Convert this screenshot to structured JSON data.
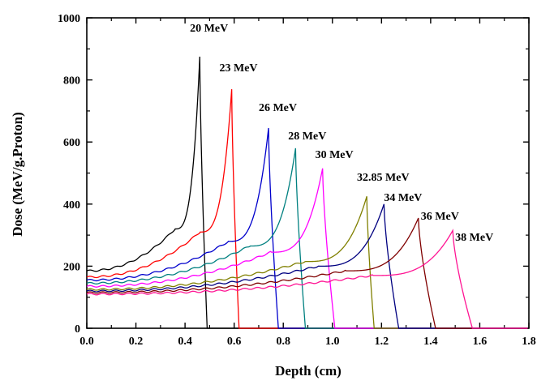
{
  "chart_data": {
    "type": "line",
    "title": "",
    "xlabel": "Depth (cm)",
    "ylabel": "Dose (MeV/g.Proton)",
    "xlim": [
      0,
      1.8
    ],
    "ylim": [
      0,
      1000
    ],
    "xticks": [
      "0.0",
      "0.2",
      "0.4",
      "0.6",
      "0.8",
      "1.0",
      "1.2",
      "1.4",
      "1.6",
      "1.8"
    ],
    "yticks": [
      "0",
      "200",
      "400",
      "600",
      "800",
      "1000"
    ],
    "grid": false,
    "legend": "none",
    "series": [
      {
        "name": "20 MeV",
        "color": "#000000",
        "entrance": 185,
        "plateau_end": 320,
        "peak_x": 0.46,
        "peak_y": 875,
        "end_x": 0.49
      },
      {
        "name": "23 MeV",
        "color": "#ff0000",
        "entrance": 165,
        "plateau_end": 310,
        "peak_x": 0.59,
        "peak_y": 770,
        "end_x": 0.62
      },
      {
        "name": "26 MeV",
        "color": "#0000cc",
        "entrance": 155,
        "plateau_end": 280,
        "peak_x": 0.74,
        "peak_y": 645,
        "end_x": 0.78
      },
      {
        "name": "28 MeV",
        "color": "#008080",
        "entrance": 145,
        "plateau_end": 265,
        "peak_x": 0.85,
        "peak_y": 580,
        "end_x": 0.89
      },
      {
        "name": "30 MeV",
        "color": "#ff00ff",
        "entrance": 135,
        "plateau_end": 245,
        "peak_x": 0.96,
        "peak_y": 515,
        "end_x": 1.01
      },
      {
        "name": "32.85 MeV",
        "color": "#808000",
        "entrance": 125,
        "plateau_end": 215,
        "peak_x": 1.14,
        "peak_y": 425,
        "end_x": 1.17
      },
      {
        "name": "34 MeV",
        "color": "#000080",
        "entrance": 120,
        "plateau_end": 200,
        "peak_x": 1.21,
        "peak_y": 400,
        "end_x": 1.27
      },
      {
        "name": "36 MeV",
        "color": "#800000",
        "entrance": 115,
        "plateau_end": 185,
        "peak_x": 1.35,
        "peak_y": 355,
        "end_x": 1.42
      },
      {
        "name": "38 MeV",
        "color": "#ff1493",
        "entrance": 110,
        "plateau_end": 170,
        "peak_x": 1.49,
        "peak_y": 315,
        "end_x": 1.57
      }
    ],
    "annotations": [
      {
        "text": "20 MeV",
        "x": 0.42,
        "y": 955
      },
      {
        "text": "23 MeV",
        "x": 0.54,
        "y": 828
      },
      {
        "text": "26 MeV",
        "x": 0.7,
        "y": 700
      },
      {
        "text": "28 MeV",
        "x": 0.82,
        "y": 608
      },
      {
        "text": "30 MeV",
        "x": 0.93,
        "y": 548
      },
      {
        "text": "32.85 MeV",
        "x": 1.1,
        "y": 475
      },
      {
        "text": "34 MeV",
        "x": 1.21,
        "y": 410
      },
      {
        "text": "36 MeV",
        "x": 1.36,
        "y": 350
      },
      {
        "text": "38 MeV",
        "x": 1.5,
        "y": 282
      }
    ]
  }
}
